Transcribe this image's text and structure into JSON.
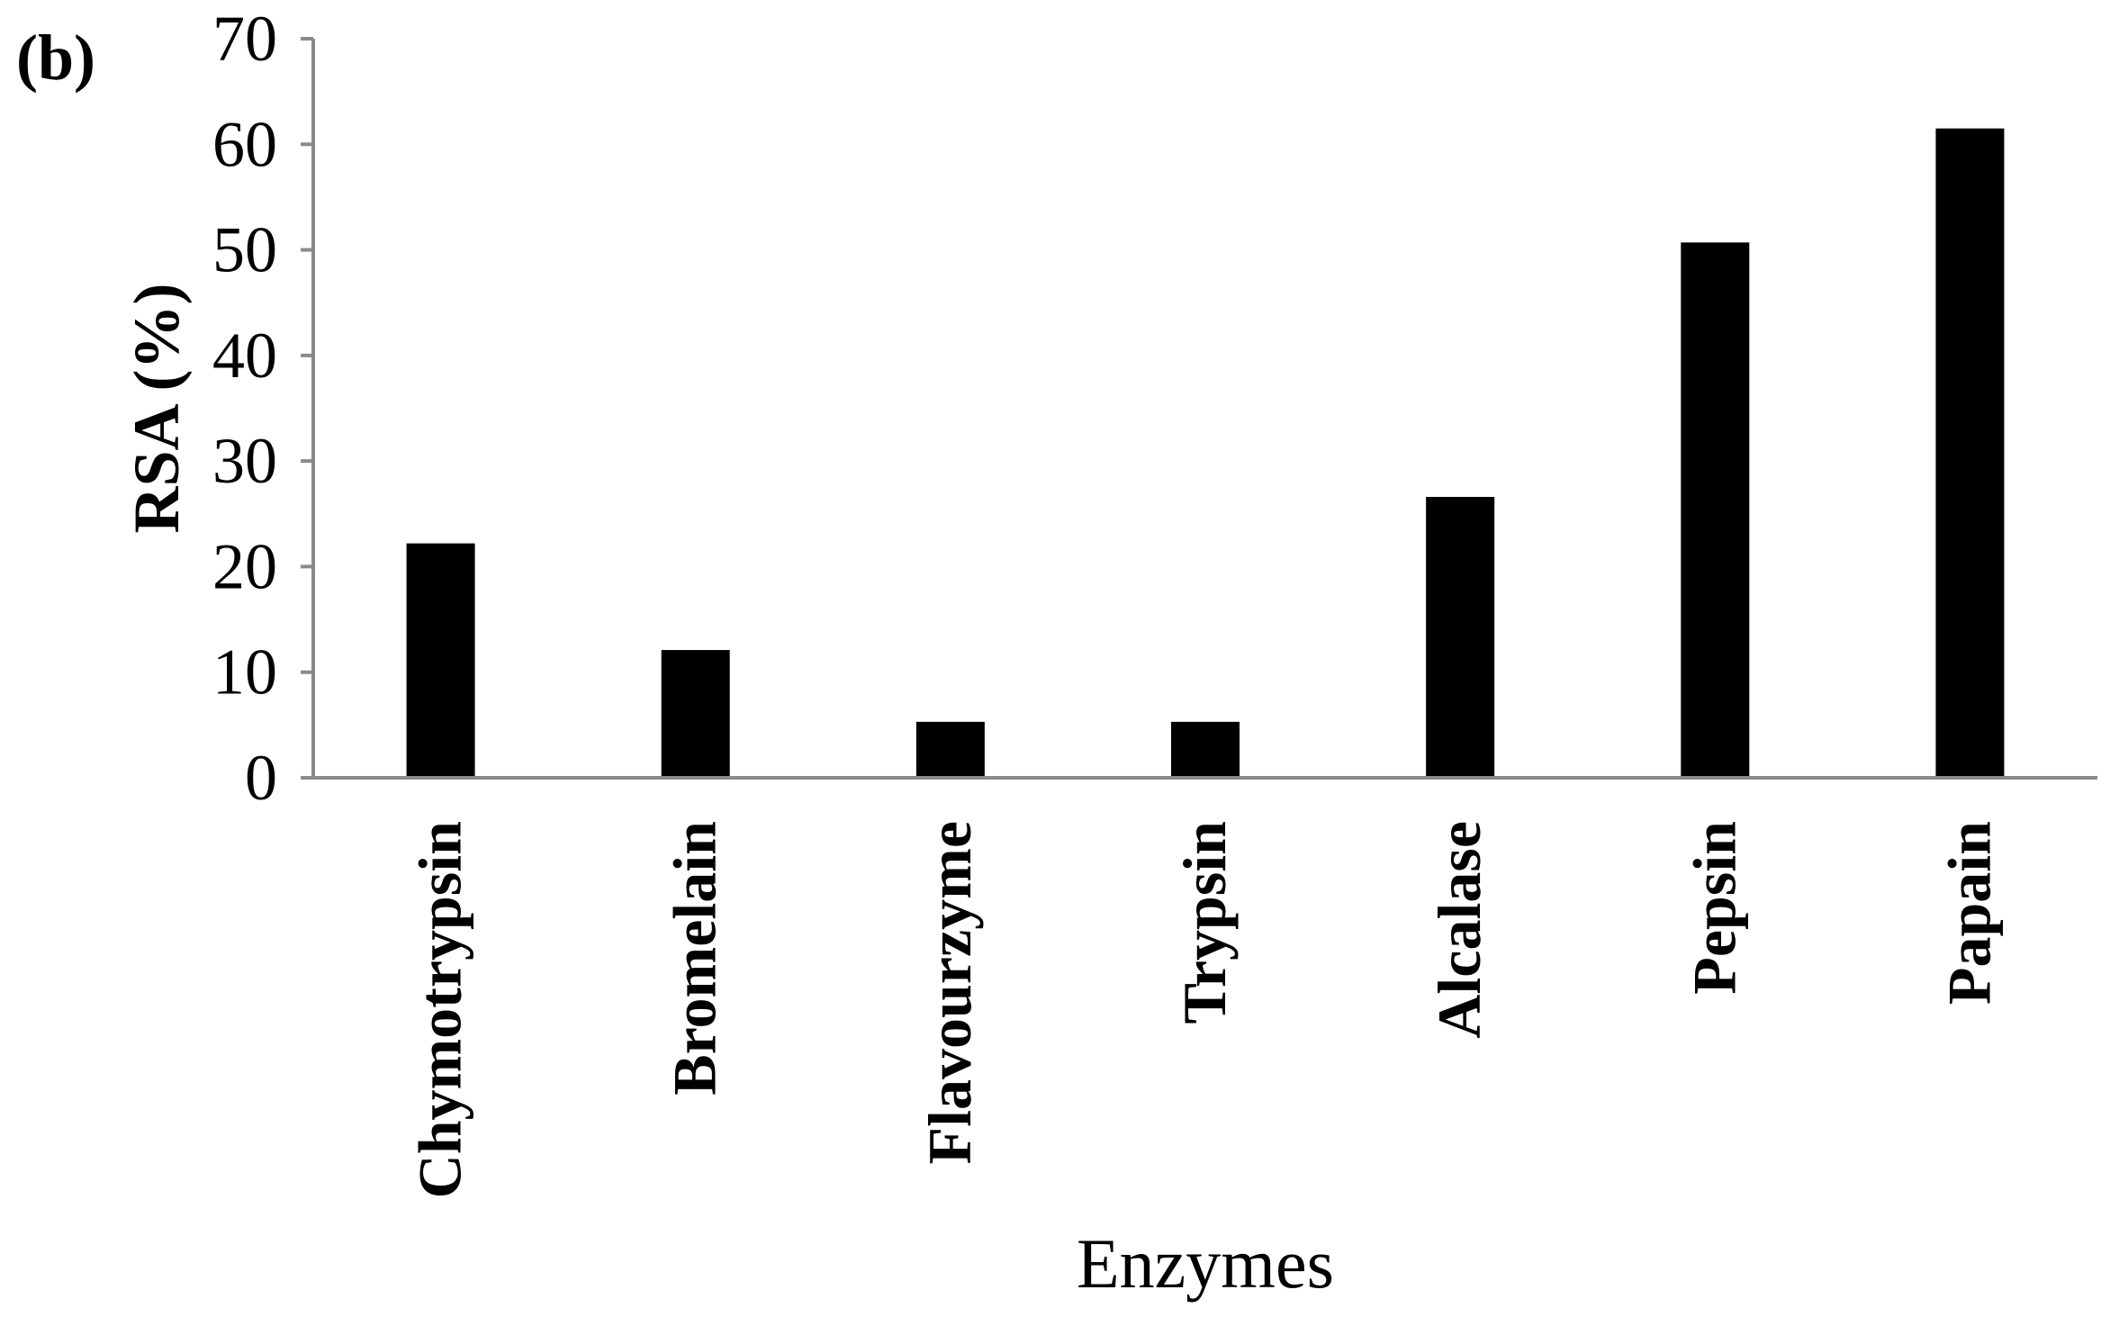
{
  "panel_label": "(b)",
  "chart_data": {
    "type": "bar",
    "categories": [
      "Chymotrypsin",
      "Bromelain",
      "Flavourzyme",
      "Trypsin",
      "Alcalase",
      "Pepsin",
      "Papain"
    ],
    "values": [
      22.2,
      12.1,
      5.3,
      5.3,
      26.6,
      50.7,
      61.5
    ],
    "title": "",
    "xlabel": "Enzymes",
    "ylabel": "RSA (%)",
    "ylim": [
      0,
      70
    ],
    "yticks": [
      0,
      10,
      20,
      30,
      40,
      50,
      60,
      70
    ],
    "bar_color": "#000000",
    "axis_color": "#8a8a8a",
    "grid": false,
    "legend": "none"
  }
}
